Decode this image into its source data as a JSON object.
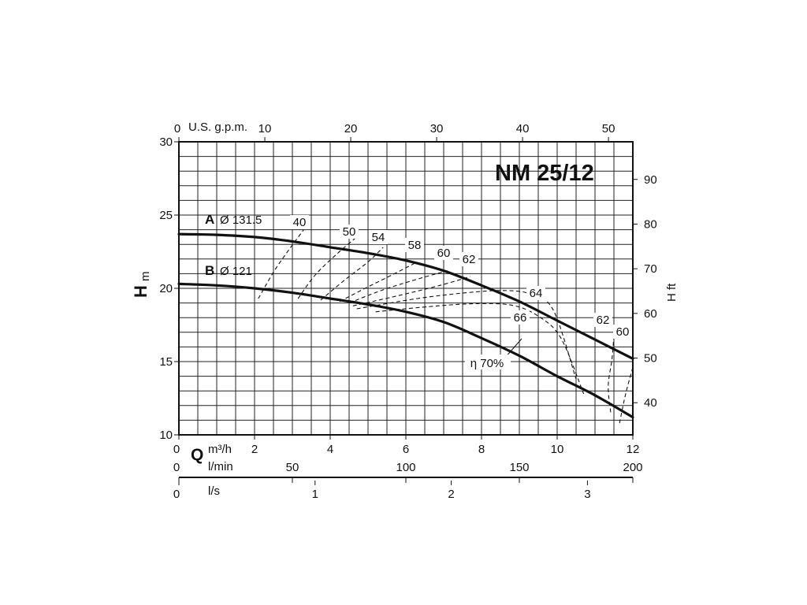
{
  "chart_data": {
    "type": "line",
    "title": "NM 25/12",
    "x_axis_primary": {
      "symbol": "Q",
      "unit": "m³/h",
      "range": [
        0,
        12
      ],
      "ticks": [
        "0",
        "2",
        "4",
        "6",
        "8",
        "10",
        "12"
      ]
    },
    "x_axis_top": {
      "label": "U.S. g.p.m.",
      "ticks": [
        "0",
        "10",
        "20",
        "30",
        "40",
        "50"
      ]
    },
    "x_axis_lmin": {
      "label": "l/min",
      "ticks": [
        "0",
        "50",
        "100",
        "150",
        "200"
      ]
    },
    "x_axis_ls": {
      "label": "l/s",
      "ticks": [
        "0",
        "1",
        "2",
        "3"
      ]
    },
    "y_axis_left": {
      "symbol": "H",
      "unit": "m",
      "range": [
        10,
        30
      ],
      "ticks": [
        "10",
        "15",
        "20",
        "25",
        "30"
      ]
    },
    "y_axis_right": {
      "label": "H ft",
      "ticks": [
        "40",
        "50",
        "60",
        "70",
        "80",
        "90"
      ]
    },
    "grid": true,
    "series": [
      {
        "name": "A",
        "diameter_label": "Ø 131.5",
        "x": [
          0,
          1,
          2,
          3,
          4,
          5,
          6,
          7,
          8,
          9,
          10,
          11,
          12
        ],
        "y": [
          23.7,
          23.65,
          23.5,
          23.2,
          22.8,
          22.4,
          21.9,
          21.2,
          20.2,
          19.1,
          17.8,
          16.5,
          15.2
        ]
      },
      {
        "name": "B",
        "diameter_label": "Ø 121",
        "x": [
          0,
          1,
          2,
          3,
          4,
          5,
          6,
          7,
          8,
          9,
          10,
          11,
          12
        ],
        "y": [
          20.3,
          20.2,
          20.0,
          19.7,
          19.3,
          18.9,
          18.4,
          17.7,
          16.6,
          15.4,
          14.0,
          12.7,
          11.2
        ]
      }
    ],
    "efficiency_curves": [
      {
        "label": "40",
        "x": [
          2.1,
          2.5,
          2.9,
          3.3
        ],
        "y": [
          19.3,
          21.1,
          22.6,
          24.0
        ]
      },
      {
        "label": "50",
        "x": [
          3.15,
          3.6,
          4.2,
          4.7
        ],
        "y": [
          19.3,
          20.9,
          22.4,
          23.5
        ]
      },
      {
        "label": "54",
        "x": [
          3.75,
          4.4,
          5.0,
          5.4
        ],
        "y": [
          19.2,
          20.6,
          21.8,
          22.8
        ]
      },
      {
        "label": "58",
        "x": [
          4.25,
          5.0,
          5.7,
          6.3
        ],
        "y": [
          19.1,
          20.1,
          21.0,
          21.8
        ]
      },
      {
        "label": "60",
        "x": [
          4.5,
          5.4,
          6.4,
          7.1
        ],
        "y": [
          19.0,
          19.9,
          20.7,
          21.2
        ]
      },
      {
        "label": "62",
        "x": [
          4.6,
          5.8,
          6.9,
          7.7
        ],
        "y": [
          18.8,
          19.5,
          20.2,
          20.8
        ]
      },
      {
        "label": "64",
        "x": [
          4.7,
          6.3,
          7.6,
          8.6,
          9.3,
          9.9,
          10.5
        ],
        "y": [
          18.6,
          19.3,
          19.7,
          19.85,
          19.6,
          18.5,
          13.8
        ]
      },
      {
        "label": "66",
        "x": [
          5.2,
          6.6,
          7.8,
          8.8,
          9.5,
          10.1,
          10.7
        ],
        "y": [
          18.4,
          18.75,
          18.95,
          18.85,
          18.1,
          16.6,
          12.8
        ]
      },
      {
        "label": "62",
        "x": [
          11.5,
          11.45,
          11.35,
          11.42
        ],
        "y": [
          16.8,
          15.2,
          13.3,
          11.4
        ]
      },
      {
        "label": "60",
        "x": [
          12.0,
          11.85,
          11.75,
          11.65
        ],
        "y": [
          14.6,
          13.2,
          12.1,
          10.8
        ]
      }
    ],
    "annotations": [
      {
        "text": "η 70%"
      }
    ]
  }
}
